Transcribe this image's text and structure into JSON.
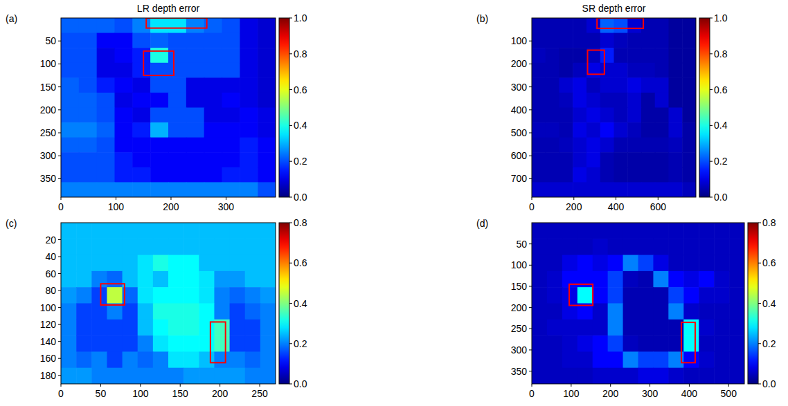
{
  "chart_data": [
    {
      "type": "heatmap",
      "title": "LR depth error",
      "panel_label": "(a)",
      "xlim": [
        0,
        390
      ],
      "ylim": [
        390,
        0
      ],
      "xticks": [
        0,
        100,
        200,
        300
      ],
      "yticks": [
        50,
        100,
        150,
        200,
        250,
        300,
        350
      ],
      "cells": [
        [
          0.22,
          0.22,
          0.22,
          0.2,
          0.25,
          0.35,
          0.35,
          0.25,
          0.22,
          0.2,
          0.1,
          0.08
        ],
        [
          0.2,
          0.2,
          0.12,
          0.12,
          0.2,
          0.22,
          0.2,
          0.2,
          0.2,
          0.2,
          0.1,
          0.08
        ],
        [
          0.2,
          0.2,
          0.1,
          0.12,
          0.15,
          0.4,
          0.2,
          0.2,
          0.2,
          0.2,
          0.1,
          0.08
        ],
        [
          0.2,
          0.2,
          0.1,
          0.1,
          0.15,
          0.2,
          0.2,
          0.2,
          0.2,
          0.2,
          0.1,
          0.08
        ],
        [
          0.22,
          0.2,
          0.15,
          0.12,
          0.1,
          0.2,
          0.2,
          0.1,
          0.1,
          0.1,
          0.1,
          0.08
        ],
        [
          0.22,
          0.22,
          0.2,
          0.1,
          0.12,
          0.12,
          0.2,
          0.1,
          0.1,
          0.12,
          0.1,
          0.08
        ],
        [
          0.22,
          0.22,
          0.2,
          0.12,
          0.1,
          0.2,
          0.2,
          0.2,
          0.1,
          0.1,
          0.12,
          0.1
        ],
        [
          0.25,
          0.25,
          0.22,
          0.12,
          0.15,
          0.3,
          0.2,
          0.2,
          0.12,
          0.12,
          0.12,
          0.1
        ],
        [
          0.22,
          0.22,
          0.2,
          0.12,
          0.12,
          0.12,
          0.12,
          0.12,
          0.12,
          0.12,
          0.15,
          0.12
        ],
        [
          0.2,
          0.2,
          0.2,
          0.15,
          0.12,
          0.12,
          0.12,
          0.12,
          0.12,
          0.12,
          0.15,
          0.12
        ],
        [
          0.2,
          0.2,
          0.2,
          0.15,
          0.15,
          0.12,
          0.12,
          0.12,
          0.12,
          0.15,
          0.15,
          0.12
        ],
        [
          0.25,
          0.25,
          0.25,
          0.25,
          0.25,
          0.25,
          0.25,
          0.25,
          0.25,
          0.25,
          0.25,
          0.2
        ]
      ],
      "colorbar_range": [
        0,
        1
      ],
      "colorbar_ticks": [
        {
          "value": 0,
          "label": "0.0"
        },
        {
          "value": 0.2,
          "label": "0.2"
        },
        {
          "value": 0.4,
          "label": "0.4"
        },
        {
          "value": 0.6,
          "label": "0.6"
        },
        {
          "value": 0.8,
          "label": "0.8"
        },
        {
          "value": 1,
          "label": "1.0"
        }
      ],
      "highlight_boxes": [
        [
          155,
          0,
          265,
          22
        ],
        [
          150,
          72,
          205,
          125
        ]
      ]
    },
    {
      "type": "heatmap",
      "title": "SR depth error",
      "panel_label": "(b)",
      "xlim": [
        0,
        780
      ],
      "ylim": [
        780,
        0
      ],
      "xticks": [
        0,
        200,
        400,
        600
      ],
      "yticks": [
        100,
        200,
        300,
        400,
        500,
        600,
        700
      ],
      "cells": [
        [
          0.05,
          0.05,
          0.05,
          0.05,
          0.08,
          0.22,
          0.2,
          0.08,
          0.05,
          0.05,
          0.03,
          0.03
        ],
        [
          0.05,
          0.05,
          0.05,
          0.05,
          0.05,
          0.08,
          0.06,
          0.05,
          0.05,
          0.05,
          0.03,
          0.03
        ],
        [
          0.06,
          0.05,
          0.04,
          0.04,
          0.06,
          0.15,
          0.05,
          0.05,
          0.05,
          0.05,
          0.03,
          0.03
        ],
        [
          0.05,
          0.05,
          0.04,
          0.06,
          0.1,
          0.08,
          0.08,
          0.06,
          0.06,
          0.05,
          0.03,
          0.03
        ],
        [
          0.05,
          0.05,
          0.08,
          0.1,
          0.06,
          0.08,
          0.08,
          0.1,
          0.08,
          0.08,
          0.03,
          0.03
        ],
        [
          0.05,
          0.05,
          0.06,
          0.1,
          0.08,
          0.06,
          0.06,
          0.08,
          0.04,
          0.08,
          0.03,
          0.03
        ],
        [
          0.05,
          0.05,
          0.05,
          0.08,
          0.1,
          0.08,
          0.06,
          0.08,
          0.04,
          0.04,
          0.08,
          0.03
        ],
        [
          0.06,
          0.06,
          0.05,
          0.1,
          0.08,
          0.12,
          0.08,
          0.06,
          0.04,
          0.04,
          0.08,
          0.04
        ],
        [
          0.05,
          0.05,
          0.06,
          0.08,
          0.1,
          0.08,
          0.05,
          0.05,
          0.05,
          0.05,
          0.06,
          0.04
        ],
        [
          0.05,
          0.05,
          0.05,
          0.08,
          0.1,
          0.05,
          0.04,
          0.04,
          0.04,
          0.04,
          0.05,
          0.04
        ],
        [
          0.05,
          0.05,
          0.05,
          0.1,
          0.08,
          0.05,
          0.04,
          0.04,
          0.04,
          0.04,
          0.05,
          0.04
        ],
        [
          0.08,
          0.08,
          0.08,
          0.08,
          0.08,
          0.08,
          0.08,
          0.08,
          0.08,
          0.08,
          0.08,
          0.06
        ]
      ],
      "colorbar_range": [
        0,
        1
      ],
      "colorbar_ticks": [
        {
          "value": 0,
          "label": "0.0"
        },
        {
          "value": 0.2,
          "label": "0.2"
        },
        {
          "value": 0.4,
          "label": "0.4"
        },
        {
          "value": 0.6,
          "label": "0.6"
        },
        {
          "value": 0.8,
          "label": "0.8"
        },
        {
          "value": 1,
          "label": "1.0"
        }
      ],
      "highlight_boxes": [
        [
          310,
          0,
          530,
          45
        ],
        [
          265,
          140,
          345,
          245
        ]
      ]
    },
    {
      "type": "heatmap",
      "panel_label": "(c)",
      "xlim": [
        0,
        270
      ],
      "ylim": [
        190,
        0
      ],
      "xticks": [
        0,
        50,
        100,
        150,
        200,
        250
      ],
      "yticks": [
        20,
        40,
        60,
        80,
        100,
        120,
        140,
        160,
        180
      ],
      "cells": [
        [
          0.25,
          0.25,
          0.25,
          0.25,
          0.25,
          0.25,
          0.25,
          0.25,
          0.25,
          0.25,
          0.25,
          0.25,
          0.25,
          0.25
        ],
        [
          0.25,
          0.25,
          0.25,
          0.25,
          0.25,
          0.25,
          0.25,
          0.25,
          0.25,
          0.25,
          0.25,
          0.25,
          0.25,
          0.25
        ],
        [
          0.25,
          0.25,
          0.25,
          0.25,
          0.25,
          0.28,
          0.32,
          0.3,
          0.3,
          0.25,
          0.25,
          0.25,
          0.25,
          0.25
        ],
        [
          0.25,
          0.25,
          0.2,
          0.18,
          0.25,
          0.28,
          0.25,
          0.3,
          0.3,
          0.28,
          0.22,
          0.22,
          0.25,
          0.25
        ],
        [
          0.22,
          0.2,
          0.15,
          0.45,
          0.18,
          0.28,
          0.3,
          0.3,
          0.3,
          0.28,
          0.2,
          0.18,
          0.2,
          0.22
        ],
        [
          0.2,
          0.15,
          0.15,
          0.2,
          0.15,
          0.25,
          0.32,
          0.32,
          0.32,
          0.3,
          0.2,
          0.15,
          0.18,
          0.2
        ],
        [
          0.2,
          0.15,
          0.15,
          0.15,
          0.15,
          0.25,
          0.3,
          0.32,
          0.32,
          0.3,
          0.35,
          0.15,
          0.15,
          0.2
        ],
        [
          0.2,
          0.15,
          0.15,
          0.15,
          0.15,
          0.2,
          0.28,
          0.3,
          0.3,
          0.3,
          0.35,
          0.15,
          0.15,
          0.2
        ],
        [
          0.2,
          0.18,
          0.2,
          0.15,
          0.2,
          0.18,
          0.2,
          0.28,
          0.28,
          0.25,
          0.2,
          0.2,
          0.18,
          0.2
        ],
        [
          0.22,
          0.22,
          0.2,
          0.2,
          0.2,
          0.2,
          0.2,
          0.2,
          0.22,
          0.22,
          0.22,
          0.22,
          0.2,
          0.2
        ]
      ],
      "colorbar_range": [
        0,
        0.8
      ],
      "colorbar_ticks": [
        {
          "value": 0,
          "label": "0.0"
        },
        {
          "value": 0.2,
          "label": "0.2"
        },
        {
          "value": 0.4,
          "label": "0.4"
        },
        {
          "value": 0.6,
          "label": "0.6"
        },
        {
          "value": 0.8,
          "label": "0.8"
        }
      ],
      "highlight_boxes": [
        [
          50,
          72,
          80,
          97
        ],
        [
          188,
          117,
          207,
          165
        ]
      ]
    },
    {
      "type": "heatmap",
      "panel_label": "(d)",
      "xlim": [
        0,
        540
      ],
      "ylim": [
        380,
        0
      ],
      "xticks": [
        0,
        100,
        200,
        300,
        400,
        500
      ],
      "yticks": [
        50,
        100,
        150,
        200,
        250,
        300,
        350
      ],
      "cells": [
        [
          0.05,
          0.05,
          0.05,
          0.05,
          0.05,
          0.05,
          0.05,
          0.05,
          0.05,
          0.05,
          0.05,
          0.05,
          0.05,
          0.05
        ],
        [
          0.05,
          0.05,
          0.05,
          0.05,
          0.06,
          0.05,
          0.05,
          0.05,
          0.05,
          0.05,
          0.05,
          0.05,
          0.05,
          0.05
        ],
        [
          0.05,
          0.05,
          0.08,
          0.1,
          0.08,
          0.1,
          0.2,
          0.15,
          0.08,
          0.05,
          0.05,
          0.05,
          0.05,
          0.05
        ],
        [
          0.05,
          0.06,
          0.1,
          0.1,
          0.1,
          0.15,
          0.05,
          0.04,
          0.2,
          0.1,
          0.08,
          0.1,
          0.06,
          0.05
        ],
        [
          0.05,
          0.06,
          0.08,
          0.3,
          0.1,
          0.15,
          0.04,
          0.04,
          0.04,
          0.15,
          0.1,
          0.06,
          0.06,
          0.05
        ],
        [
          0.05,
          0.05,
          0.08,
          0.1,
          0.06,
          0.2,
          0.04,
          0.04,
          0.04,
          0.2,
          0.06,
          0.05,
          0.05,
          0.05
        ],
        [
          0.05,
          0.06,
          0.06,
          0.06,
          0.06,
          0.2,
          0.04,
          0.04,
          0.04,
          0.04,
          0.3,
          0.06,
          0.05,
          0.05
        ],
        [
          0.05,
          0.05,
          0.06,
          0.08,
          0.1,
          0.15,
          0.05,
          0.04,
          0.04,
          0.04,
          0.3,
          0.05,
          0.05,
          0.05
        ],
        [
          0.05,
          0.05,
          0.06,
          0.06,
          0.1,
          0.1,
          0.2,
          0.15,
          0.15,
          0.2,
          0.1,
          0.06,
          0.05,
          0.05
        ],
        [
          0.05,
          0.05,
          0.05,
          0.05,
          0.06,
          0.06,
          0.06,
          0.08,
          0.08,
          0.06,
          0.05,
          0.05,
          0.05,
          0.05
        ]
      ],
      "colorbar_range": [
        0,
        0.8
      ],
      "colorbar_ticks": [
        {
          "value": 0,
          "label": "0.0"
        },
        {
          "value": 0.2,
          "label": "0.2"
        },
        {
          "value": 0.4,
          "label": "0.4"
        },
        {
          "value": 0.6,
          "label": "0.6"
        },
        {
          "value": 0.8,
          "label": "0.8"
        }
      ],
      "highlight_boxes": [
        [
          95,
          145,
          155,
          195
        ],
        [
          380,
          235,
          415,
          330
        ]
      ]
    }
  ]
}
